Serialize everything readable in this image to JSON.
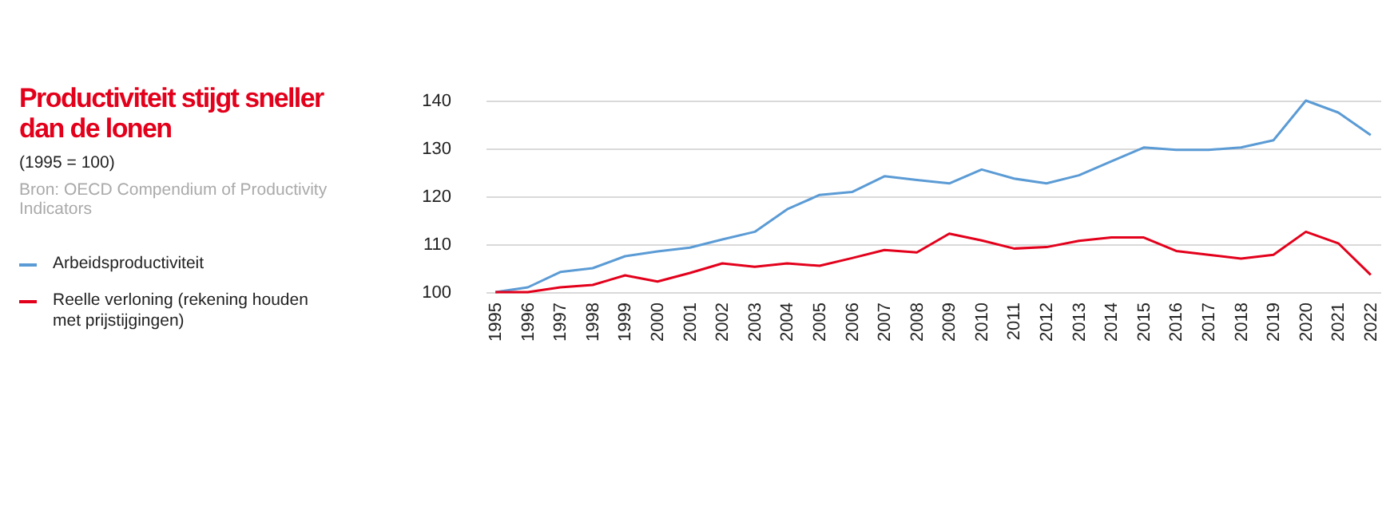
{
  "chart_data": {
    "type": "line",
    "title": "Productiviteit stijgt sneller dan de lonen",
    "subtitle": "(1995 = 100)",
    "annotations": [
      "Bron: OECD Compendium of Productivity Indicators"
    ],
    "categories": [
      "1995",
      "1996",
      "1997",
      "1998",
      "1999",
      "2000",
      "2001",
      "2002",
      "2003",
      "2004",
      "2005",
      "2006",
      "2007",
      "2008",
      "2009",
      "2010",
      "2011",
      "2012",
      "2013",
      "2014",
      "2015",
      "2016",
      "2017",
      "2018",
      "2019",
      "2020",
      "2021",
      "2022"
    ],
    "series": [
      {
        "name": "Arbeidsproductiviteit",
        "color": "#5b9bd5",
        "values": [
          100,
          101,
          104.2,
          105,
          107.5,
          108.5,
          109.3,
          111,
          112.6,
          117.3,
          120.3,
          120.9,
          124.2,
          123.4,
          122.7,
          125.6,
          123.7,
          122.7,
          124.4,
          127.3,
          130.2,
          129.7,
          129.7,
          130.2,
          131.7,
          140,
          137.5,
          132.8
        ]
      },
      {
        "name": "Reelle verloning (rekening houden met prijstijgingen)",
        "color": "#e3001b",
        "values": [
          100,
          100,
          101,
          101.5,
          103.5,
          102.2,
          104,
          106,
          105.3,
          106,
          105.5,
          107.1,
          108.8,
          108.3,
          112.2,
          110.8,
          109.1,
          109.4,
          110.7,
          111.4,
          111.4,
          108.6,
          107.8,
          107,
          107.8,
          112.6,
          110.2,
          103.6
        ]
      }
    ],
    "ylim": [
      100,
      140
    ],
    "yticks": [
      100,
      110,
      120,
      130,
      140
    ],
    "grid": "y",
    "legend": "left",
    "marker": "none",
    "line_style": "solid"
  }
}
